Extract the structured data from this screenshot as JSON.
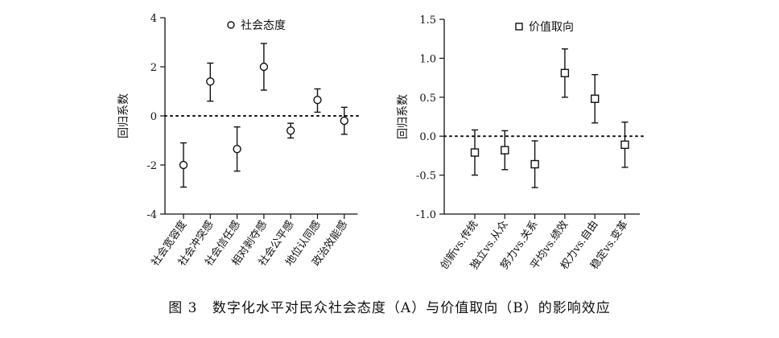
{
  "caption": {
    "figure_no": "图 3",
    "text": "数字化水平对民众社会态度（A）与价值取向（B）的影响效应"
  },
  "colors": {
    "ink": "#111111",
    "background": "#ffffff"
  },
  "chart_data": [
    {
      "type": "errorbar",
      "panel": "A",
      "ylabel": "回归系数",
      "ylim": [
        -4,
        4
      ],
      "yticks": [
        4,
        2,
        0,
        -2,
        -4
      ],
      "ytick_labels": [
        "4",
        "2",
        "0",
        "-2",
        "-4"
      ],
      "reference_line": 0,
      "legend": {
        "label": "社会态度",
        "marker": "circle",
        "placement": "top-center"
      },
      "categories": [
        "社会宽容度",
        "社会冲突感",
        "社会信任感",
        "相对剥夺感",
        "社会公平感",
        "地位认同感",
        "政治效能感"
      ],
      "series": [
        {
          "name": "社会态度",
          "marker": "circle",
          "values": [
            -2.0,
            1.4,
            -1.35,
            2.0,
            -0.6,
            0.65,
            -0.2
          ],
          "lower": [
            -2.9,
            0.6,
            -2.25,
            1.05,
            -0.9,
            0.15,
            -0.75
          ],
          "upper": [
            -1.1,
            2.15,
            -0.45,
            2.95,
            -0.3,
            1.1,
            0.35
          ]
        }
      ]
    },
    {
      "type": "errorbar",
      "panel": "B",
      "ylabel": "回归系数",
      "ylim": [
        -1.0,
        1.5
      ],
      "yticks": [
        1.5,
        1.0,
        0.5,
        0.0,
        -0.5,
        -1.0
      ],
      "ytick_labels": [
        "1.5",
        "1.0",
        "0.5",
        "0.0",
        "-0.5",
        "-1.0"
      ],
      "reference_line": 0,
      "legend": {
        "label": "价值取向",
        "marker": "square",
        "placement": "top-center"
      },
      "categories": [
        "创新vs.传统",
        "独立vs.从众",
        "努力vs.关系",
        "平均vs.绩效",
        "权力vs.自由",
        "稳定vs.变革"
      ],
      "series": [
        {
          "name": "价值取向",
          "marker": "square",
          "values": [
            -0.21,
            -0.18,
            -0.36,
            0.81,
            0.48,
            -0.11
          ],
          "lower": [
            -0.5,
            -0.43,
            -0.66,
            0.5,
            0.17,
            -0.4
          ],
          "upper": [
            0.08,
            0.07,
            -0.06,
            1.12,
            0.79,
            0.18
          ]
        }
      ]
    }
  ]
}
